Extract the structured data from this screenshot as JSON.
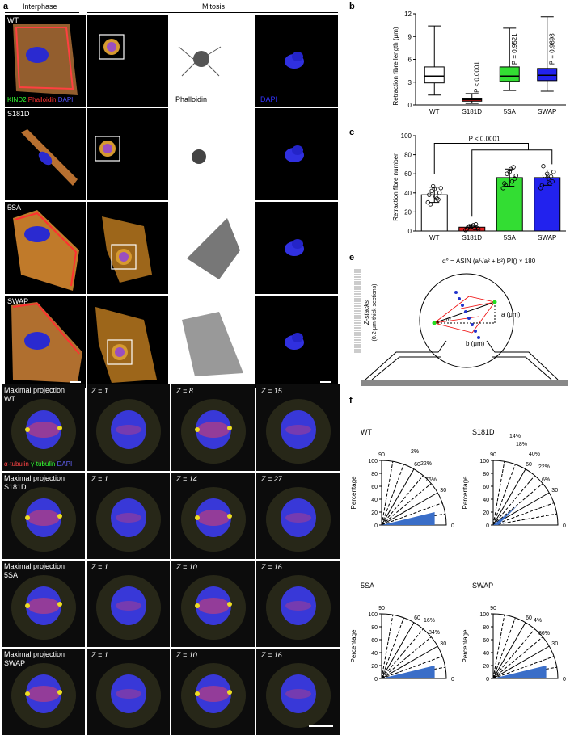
{
  "panel_a": {
    "letter": "a",
    "header_interphase": "Interphase",
    "header_mitosis": "Mitosis",
    "rows": [
      {
        "label": "WT"
      },
      {
        "label": "S181D"
      },
      {
        "label": "5SA"
      },
      {
        "label": "SWAP"
      }
    ],
    "stain_kind2": "KIND2",
    "stain_phalloidin": "Phalloidin",
    "stain_dapi": "DAPI",
    "phalloidin_label": "Phalloidin",
    "dapi_label": "DAPI"
  },
  "panel_b": {
    "letter": "b",
    "chart_data": {
      "type": "box",
      "ylabel": "Retraction fibre length (μm)",
      "ylim": [
        0,
        12
      ],
      "yticks": [
        0,
        3,
        6,
        9,
        12
      ],
      "categories": [
        "WT",
        "S181D",
        "5SA",
        "SWAP"
      ],
      "colors": [
        "#ffffff",
        "#e02020",
        "#33dd33",
        "#2222ee"
      ],
      "boxes": [
        {
          "min": 1.3,
          "q1": 2.9,
          "median": 3.8,
          "q3": 5.0,
          "max": 10.4
        },
        {
          "min": 0.2,
          "q1": 0.5,
          "median": 0.7,
          "q3": 0.9,
          "max": 1.5
        },
        {
          "min": 1.9,
          "q1": 3.1,
          "median": 3.8,
          "q3": 5.0,
          "max": 10.1
        },
        {
          "min": 1.8,
          "q1": 3.2,
          "median": 3.9,
          "q3": 4.8,
          "max": 11.6
        }
      ],
      "annotations": [
        "P < 0.0001",
        "P = 0.9521",
        "P = 0.9898"
      ]
    }
  },
  "panel_c": {
    "letter": "c",
    "chart_data": {
      "type": "bar",
      "ylabel": "Retraction fibre number",
      "ylim": [
        0,
        100
      ],
      "yticks": [
        0,
        20,
        40,
        60,
        80,
        100
      ],
      "categories": [
        "WT",
        "S181D",
        "5SA",
        "SWAP"
      ],
      "colors": [
        "#ffffff",
        "#e02020",
        "#33dd33",
        "#2222ee"
      ],
      "values": [
        38,
        4,
        56,
        56
      ],
      "errors": [
        8,
        2,
        9,
        8
      ],
      "points": [
        [
          30,
          34,
          42,
          45,
          36,
          28,
          40,
          44,
          38,
          33,
          47
        ],
        [
          1,
          3,
          5,
          2,
          6,
          4,
          3,
          5,
          2,
          7,
          4
        ],
        [
          45,
          52,
          60,
          58,
          65,
          48,
          55,
          62,
          50,
          67
        ],
        [
          45,
          50,
          58,
          62,
          55,
          68,
          52,
          60,
          48,
          57
        ]
      ],
      "annotation": "P < 0.0001"
    }
  },
  "panel_e": {
    "letter": "e",
    "formula": "α° = ASIN (a/√a² + b²) PI() × 180",
    "zstacks_label": "Z-stacks",
    "zstacks_sub": "(0.2-μm-thick sections)",
    "a_label": "a (μm)",
    "b_label": "b (μm)",
    "alpha_label": "α°"
  },
  "panel_d": {
    "letter": "d",
    "stain_alpha": "α-tubulin",
    "stain_gamma": "γ-tubulin",
    "stain_dapi": "DAPI",
    "rows": [
      {
        "title": "Maximal projection",
        "name": "WT",
        "z": [
          "Z = 1",
          "Z = 8",
          "Z = 15"
        ]
      },
      {
        "title": "Maximal projection",
        "name": "S181D",
        "z": [
          "Z = 1",
          "Z = 14",
          "Z = 27"
        ]
      },
      {
        "title": "Maximal projection",
        "name": "5SA",
        "z": [
          "Z = 1",
          "Z = 10",
          "Z = 16"
        ]
      },
      {
        "title": "Maximal projection",
        "name": "SWAP",
        "z": [
          "Z = 1",
          "Z = 10",
          "Z = 16"
        ]
      }
    ]
  },
  "panel_f": {
    "letter": "f",
    "ylabel": "Percentage",
    "yticks": [
      "0",
      "20",
      "40",
      "60",
      "80",
      "100"
    ],
    "angle_ticks": [
      "90",
      "60",
      "30",
      "0"
    ],
    "charts": [
      {
        "name": "WT",
        "percents": [
          "76%",
          "22%",
          "2%"
        ]
      },
      {
        "name": "S181D",
        "percents": [
          "6%",
          "22%",
          "40%",
          "18%",
          "14%"
        ]
      },
      {
        "name": "5SA",
        "percents": [
          "84%",
          "16%"
        ]
      },
      {
        "name": "SWAP",
        "percents": [
          "86%",
          "4%"
        ]
      }
    ]
  }
}
